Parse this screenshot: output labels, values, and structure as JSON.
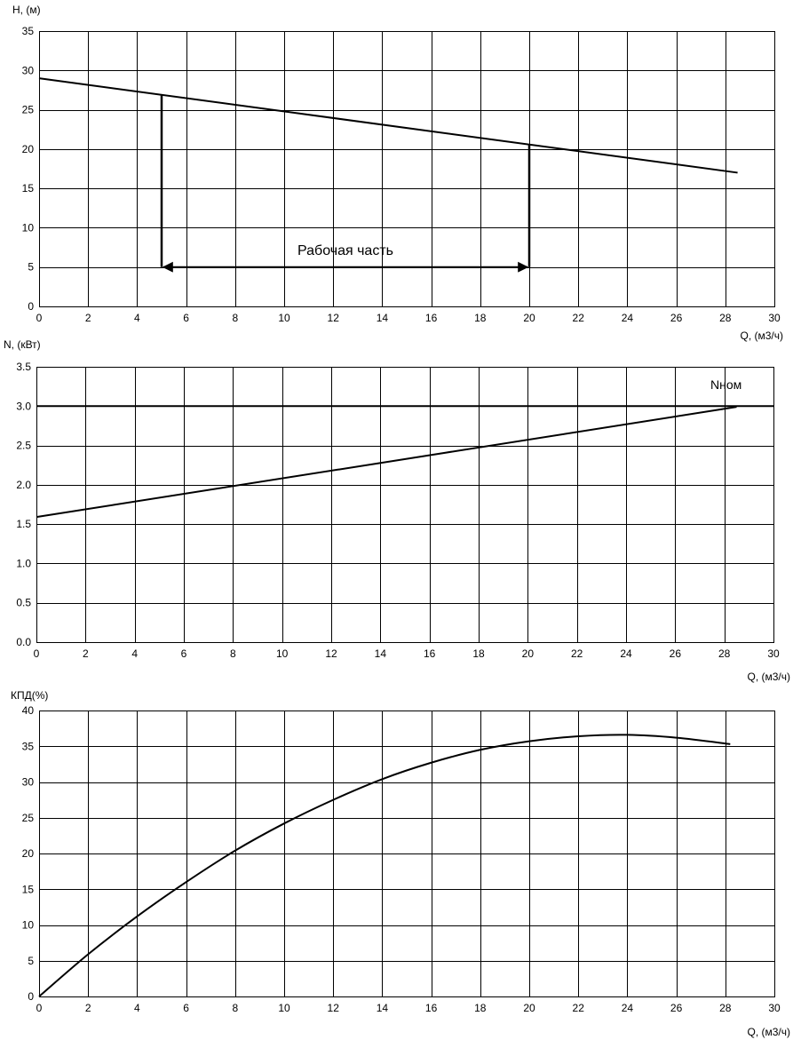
{
  "chart_data": [
    {
      "type": "line",
      "ylabel": "H, (м)",
      "xlabel": "Q, (м3/ч)",
      "xlim": [
        0,
        30
      ],
      "ylim": [
        0,
        35
      ],
      "x_ticks": [
        0,
        2,
        4,
        6,
        8,
        10,
        12,
        14,
        16,
        18,
        20,
        22,
        24,
        26,
        28,
        30
      ],
      "y_ticks": [
        0,
        5,
        10,
        15,
        20,
        25,
        30,
        35
      ],
      "grid": true,
      "series": [
        {
          "x": [
            0,
            28.5
          ],
          "values": [
            29,
            17
          ]
        }
      ],
      "working_range": {
        "x_start": 5,
        "x_end": 20,
        "arrow_y": 5,
        "label": "Рабочая часть"
      }
    },
    {
      "type": "line",
      "ylabel": "N, (кВт)",
      "xlabel": "Q, (м3/ч)",
      "xlim": [
        0,
        30
      ],
      "ylim": [
        0,
        3.5
      ],
      "x_ticks": [
        0,
        2,
        4,
        6,
        8,
        10,
        12,
        14,
        16,
        18,
        20,
        22,
        24,
        26,
        28,
        30
      ],
      "y_ticks": [
        0.0,
        0.5,
        1.0,
        1.5,
        2.0,
        2.5,
        3.0,
        3.5
      ],
      "y_tick_labels": [
        "0.0",
        "0.5",
        "1.0",
        "1.5",
        "2.0",
        "2.5",
        "3.0",
        "3.5"
      ],
      "grid": true,
      "series": [
        {
          "x": [
            0,
            28.5
          ],
          "values": [
            1.59,
            2.99
          ]
        }
      ],
      "reference_line": {
        "y": 3.0,
        "label": "Nном"
      }
    },
    {
      "type": "line",
      "ylabel": "КПД(%)",
      "xlabel": "Q, (м3/ч)",
      "xlim": [
        0,
        30
      ],
      "ylim": [
        0,
        40
      ],
      "x_ticks": [
        0,
        2,
        4,
        6,
        8,
        10,
        12,
        14,
        16,
        18,
        20,
        22,
        24,
        26,
        28,
        30
      ],
      "y_ticks": [
        0,
        5,
        10,
        15,
        20,
        25,
        30,
        35,
        40
      ],
      "grid": true,
      "series": [
        {
          "x": [
            0,
            2,
            4,
            6,
            8,
            10,
            12,
            14,
            16,
            18,
            20,
            22,
            24,
            26,
            28.2
          ],
          "values": [
            0,
            5.9,
            11.2,
            16,
            20.4,
            24.2,
            27.5,
            30.4,
            32.7,
            34.5,
            35.7,
            36.4,
            36.6,
            36.2,
            35.3
          ]
        }
      ]
    }
  ]
}
